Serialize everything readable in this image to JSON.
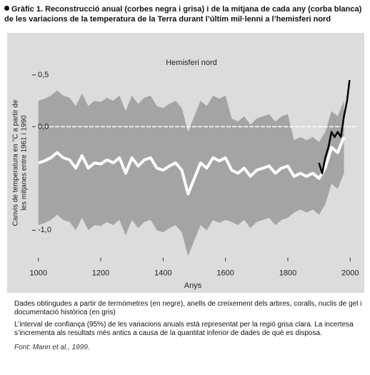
{
  "chart_data": {
    "type": "line",
    "title": "Gràfic 1. Reconstrucció anual (corbes negra i grisa) i de la mitjana de cada any (corba blanca) de les variacions de la temperatura de la Terra durant l’últim mil·lenni a l’hemisferi nord",
    "panel_label": "Hemisferi nord",
    "y_label": [
      "Canvis de temperatura en °C a partir de",
      "les mitjanes entre 1961 i 1990"
    ],
    "x_label": "Anys",
    "xlim": [
      980,
      2020
    ],
    "xticks": [
      1000,
      1200,
      1400,
      1600,
      1800,
      2000
    ],
    "ylim": [
      -1.3,
      0.6
    ],
    "yticks": [
      {
        "value": 0.5,
        "label": "0,5"
      },
      {
        "value": 0,
        "label": "0,0"
      },
      {
        "value": -1,
        "label": "-1,0"
      }
    ],
    "zero_line": true,
    "background": "#dcdcdc",
    "band": {
      "color": "#a4a4a4",
      "x": [
        1000,
        1020,
        1040,
        1060,
        1080,
        1100,
        1120,
        1140,
        1160,
        1180,
        1200,
        1220,
        1240,
        1260,
        1280,
        1300,
        1320,
        1340,
        1360,
        1380,
        1400,
        1420,
        1440,
        1460,
        1480,
        1500,
        1520,
        1540,
        1560,
        1580,
        1600,
        1620,
        1640,
        1660,
        1680,
        1700,
        1720,
        1740,
        1760,
        1780,
        1800,
        1820,
        1840,
        1860,
        1880,
        1900,
        1920,
        1940,
        1960,
        1980
      ],
      "lower": [
        -0.95,
        -0.93,
        -0.9,
        -0.85,
        -0.9,
        -0.92,
        -1.0,
        -0.88,
        -1.0,
        -0.95,
        -0.96,
        -0.92,
        -0.95,
        -0.9,
        -1.05,
        -0.9,
        -0.98,
        -0.92,
        -0.9,
        -1.0,
        -1.02,
        -0.98,
        -0.95,
        -1.02,
        -1.25,
        -1.1,
        -0.95,
        -1.0,
        -0.9,
        -0.93,
        -0.9,
        -0.92,
        -0.95,
        -0.9,
        -0.98,
        -0.92,
        -0.9,
        -0.88,
        -0.95,
        -0.9,
        -0.88,
        -0.83,
        -0.8,
        -0.83,
        -0.8,
        -0.85,
        -0.75,
        -0.55,
        -0.6,
        -0.45
      ],
      "upper": [
        0.25,
        0.27,
        0.3,
        0.35,
        0.3,
        0.28,
        0.2,
        0.32,
        0.2,
        0.25,
        0.24,
        0.28,
        0.25,
        0.3,
        0.15,
        0.3,
        0.22,
        0.28,
        0.3,
        0.2,
        0.18,
        0.22,
        0.25,
        0.18,
        -0.05,
        0.1,
        0.25,
        0.2,
        0.3,
        0.27,
        0.3,
        0.08,
        0.05,
        0.1,
        0.02,
        0.08,
        0.1,
        0.12,
        0.05,
        0.1,
        0.12,
        -0.13,
        -0.1,
        -0.13,
        -0.1,
        -0.15,
        -0.05,
        0.15,
        0.1,
        0.25
      ]
    },
    "series": [
      {
        "color": "#ffffff",
        "x": [
          1000,
          1020,
          1040,
          1060,
          1080,
          1100,
          1120,
          1140,
          1160,
          1180,
          1200,
          1220,
          1240,
          1260,
          1280,
          1300,
          1320,
          1340,
          1360,
          1380,
          1400,
          1420,
          1440,
          1460,
          1480,
          1500,
          1520,
          1540,
          1560,
          1580,
          1600,
          1620,
          1640,
          1660,
          1680,
          1700,
          1720,
          1740,
          1760,
          1780,
          1800,
          1820,
          1840,
          1860,
          1880,
          1900,
          1920,
          1940,
          1960,
          1980
        ],
        "values": [
          -0.35,
          -0.33,
          -0.3,
          -0.25,
          -0.3,
          -0.32,
          -0.4,
          -0.28,
          -0.4,
          -0.35,
          -0.36,
          -0.32,
          -0.35,
          -0.3,
          -0.45,
          -0.3,
          -0.38,
          -0.32,
          -0.3,
          -0.4,
          -0.42,
          -0.38,
          -0.35,
          -0.42,
          -0.65,
          -0.5,
          -0.35,
          -0.4,
          -0.3,
          -0.33,
          -0.3,
          -0.42,
          -0.45,
          -0.4,
          -0.48,
          -0.42,
          -0.4,
          -0.38,
          -0.45,
          -0.4,
          -0.38,
          -0.48,
          -0.45,
          -0.48,
          -0.45,
          -0.5,
          -0.4,
          -0.2,
          -0.25,
          -0.1
        ]
      },
      {
        "color": "#000000",
        "x": [
          1900,
          1910,
          1920,
          1930,
          1940,
          1950,
          1960,
          1970,
          1980,
          1990,
          1998
        ],
        "values": [
          -0.35,
          -0.45,
          -0.3,
          -0.2,
          -0.05,
          -0.1,
          -0.05,
          -0.1,
          0.1,
          0.25,
          0.45
        ]
      }
    ]
  },
  "notes": [
    "Dades obtingudes a partir de termòmetres (en negre), anells de creixement dels arbres, coralls, nuclis de gel i documentació històrica (en gris)",
    "L’interval de confiança (95%) de les variacions anuals està representat per la regió grisa clara. La incertesa s’incrementa als resultats més antics a causa de la quantitat inferior de dades de què es disposa."
  ],
  "source": "Font: Mann et al., 1999."
}
